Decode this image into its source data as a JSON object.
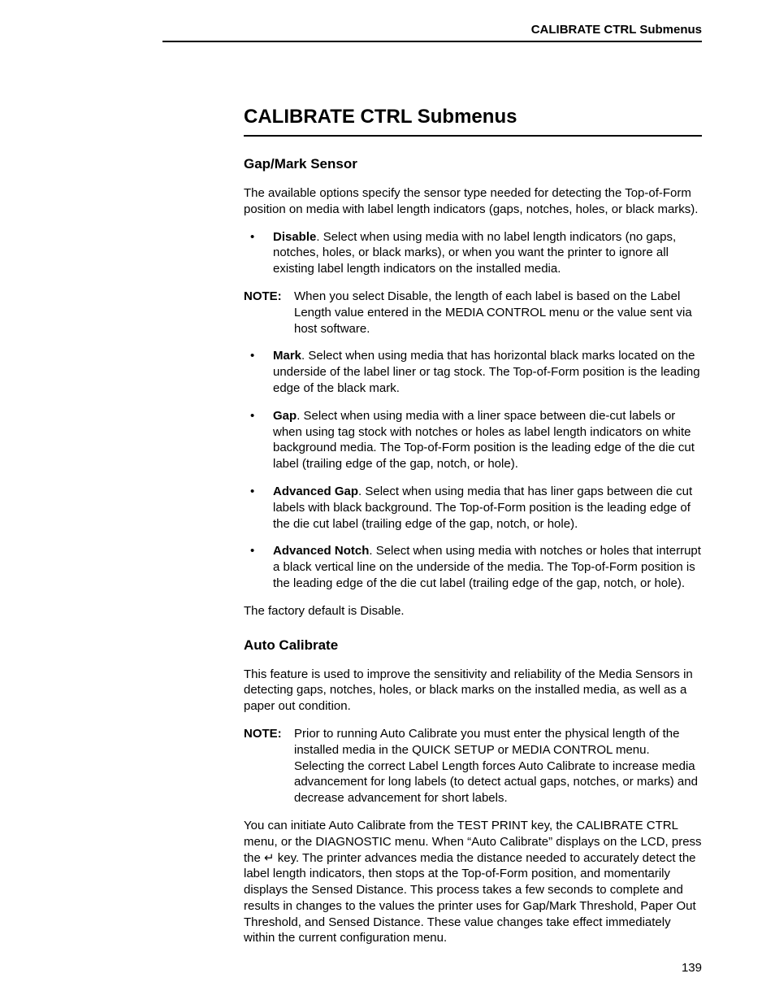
{
  "header": {
    "running_title": "CALIBRATE CTRL Submenus"
  },
  "section": {
    "title": "CALIBRATE CTRL Submenus"
  },
  "gap_mark": {
    "heading": "Gap/Mark Sensor",
    "intro": "The available options specify the sensor type needed for detecting the Top-of-Form position on media with label length indicators (gaps, notches, holes, or black marks).",
    "items": [
      {
        "term": "Disable",
        "text": ". Select when using media with no label length indicators (no gaps, notches, holes, or black marks), or when you want the printer to ignore all existing label length indicators on the installed media."
      }
    ],
    "note1_label": "NOTE:",
    "note1_text": "When you select Disable, the length of each label is based on the Label Length value entered in the MEDIA CONTROL menu or the value sent via host software.",
    "items2": [
      {
        "term": "Mark",
        "text": ". Select when using media that has horizontal black marks located on the underside of the label liner or tag stock. The Top-of-Form position is the leading edge of the black mark."
      },
      {
        "term": "Gap",
        "text": ". Select when using media with a liner space between die-cut labels or when using tag stock with notches or holes as label length indicators on white background media. The Top-of-Form position is the leading edge of the die cut label (trailing edge of the gap, notch, or hole)."
      },
      {
        "term": "Advanced Gap",
        "text": ". Select when using media that has liner gaps between die cut labels with black background. The Top-of-Form position is the leading edge of the die cut label (trailing edge of the gap, notch, or hole)."
      },
      {
        "term": "Advanced Notch",
        "text": ". Select when using media with notches or holes that interrupt a black vertical line on the underside of the media. The Top-of-Form position is the leading edge of the die cut label (trailing edge of the gap, notch, or hole)."
      }
    ],
    "default": "The factory default is Disable."
  },
  "auto_cal": {
    "heading": "Auto Calibrate",
    "intro": "This feature is used to improve the sensitivity and reliability of the Media Sensors in detecting gaps, notches, holes, or black marks on the installed media, as well as a paper out condition.",
    "note_label": "NOTE:",
    "note_text": "Prior to running Auto Calibrate you must enter the physical length of the installed media in the QUICK SETUP or MEDIA CONTROL menu. Selecting the correct Label Length forces Auto Calibrate to increase media advancement for long labels (to detect actual gaps, notches, or marks) and decrease advancement for short labels.",
    "body": "You can initiate Auto Calibrate from the TEST PRINT key, the CALIBRATE CTRL menu, or the DIAGNOSTIC menu. When “Auto Calibrate” displays on the LCD, press the ↵ key. The printer advances media the distance needed to accurately detect the label length indicators, then stops at the Top-of-Form position, and momentarily displays the Sensed Distance. This process takes a few seconds to complete and results in changes to the values the printer uses for Gap/Mark Threshold, Paper Out Threshold, and Sensed Distance. These value changes take effect immediately within the current configuration menu."
  },
  "page_number": "139",
  "glyphs": {
    "bullet": "•"
  }
}
